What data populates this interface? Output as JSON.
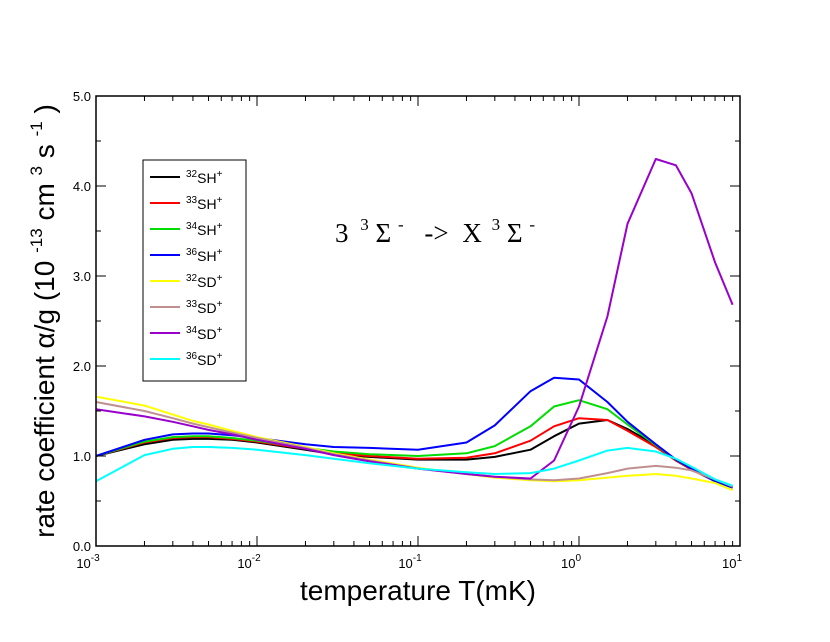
{
  "chart_data": {
    "type": "line",
    "title": "",
    "annotation": {
      "lhs_prefix": "3",
      "lhs_sup": "3",
      "lhs_sym": "Σ",
      "lhs_sym_sup": "-",
      "arrow": "->",
      "rhs_prefix": "X",
      "rhs_sup": "3",
      "rhs_sym": "Σ",
      "rhs_sym_sup": "-"
    },
    "xlabel": "temperature T(mK)",
    "ylabel": {
      "main": "rate coefficient α/g (10",
      "exp1": "-13",
      "unit1": " cm",
      "exp2": "3",
      "unit2": "s",
      "exp3": "-1",
      "close": ")"
    },
    "xscale": "log",
    "xlim": [
      0.001,
      10
    ],
    "ylim": [
      0.0,
      5.0
    ],
    "x_ticks": [
      {
        "base": "10",
        "exp": "-3",
        "value": 0.001
      },
      {
        "base": "10",
        "exp": "-2",
        "value": 0.01
      },
      {
        "base": "10",
        "exp": "-1",
        "value": 0.1
      },
      {
        "base": "10",
        "exp": "0",
        "value": 1
      },
      {
        "base": "10",
        "exp": "1",
        "value": 10
      }
    ],
    "y_ticks": [
      "0.0",
      "1.0",
      "2.0",
      "3.0",
      "4.0",
      "5.0"
    ],
    "y_tick_values": [
      0,
      1,
      2,
      3,
      4,
      5
    ],
    "legend_position": "upper-left",
    "x": [
      0.001,
      0.002,
      0.003,
      0.004,
      0.005,
      0.007,
      0.01,
      0.02,
      0.03,
      0.05,
      0.1,
      0.2,
      0.3,
      0.5,
      0.7,
      1.0,
      1.5,
      2.0,
      3.0,
      4.0,
      5.0,
      7.0,
      9.0
    ],
    "series": [
      {
        "iso": "32",
        "mol": "SH",
        "charge": "+",
        "color": "#000000",
        "values": [
          1.0,
          1.13,
          1.18,
          1.19,
          1.19,
          1.18,
          1.15,
          1.07,
          1.02,
          0.99,
          0.96,
          0.96,
          0.99,
          1.07,
          1.22,
          1.36,
          1.4,
          1.3,
          1.12,
          0.95,
          0.85,
          0.72,
          0.65
        ]
      },
      {
        "iso": "33",
        "mol": "SH",
        "charge": "+",
        "color": "#ff0000",
        "values": [
          1.0,
          1.15,
          1.2,
          1.21,
          1.21,
          1.19,
          1.16,
          1.08,
          1.03,
          1.0,
          0.97,
          0.98,
          1.03,
          1.17,
          1.33,
          1.42,
          1.4,
          1.28,
          1.1,
          0.95,
          0.85,
          0.72,
          0.65
        ]
      },
      {
        "iso": "34",
        "mol": "SH",
        "charge": "+",
        "color": "#00dd00",
        "values": [
          1.0,
          1.16,
          1.21,
          1.22,
          1.22,
          1.2,
          1.17,
          1.09,
          1.05,
          1.02,
          1.0,
          1.03,
          1.11,
          1.33,
          1.55,
          1.62,
          1.52,
          1.35,
          1.12,
          0.96,
          0.86,
          0.72,
          0.65
        ]
      },
      {
        "iso": "36",
        "mol": "SH",
        "charge": "+",
        "color": "#0000ff",
        "values": [
          1.0,
          1.18,
          1.24,
          1.25,
          1.25,
          1.23,
          1.2,
          1.13,
          1.1,
          1.09,
          1.07,
          1.15,
          1.34,
          1.72,
          1.87,
          1.85,
          1.6,
          1.38,
          1.13,
          0.96,
          0.86,
          0.72,
          0.65
        ]
      },
      {
        "iso": "32",
        "mol": "SD",
        "charge": "+",
        "color": "#ffff00",
        "values": [
          1.66,
          1.56,
          1.46,
          1.39,
          1.35,
          1.28,
          1.21,
          1.1,
          1.03,
          0.96,
          0.87,
          0.8,
          0.76,
          0.73,
          0.72,
          0.73,
          0.76,
          0.78,
          0.8,
          0.78,
          0.75,
          0.7,
          0.62
        ]
      },
      {
        "iso": "33",
        "mol": "SD",
        "charge": "+",
        "color": "#c09090",
        "values": [
          1.6,
          1.5,
          1.42,
          1.36,
          1.32,
          1.26,
          1.2,
          1.09,
          1.02,
          0.95,
          0.86,
          0.8,
          0.77,
          0.74,
          0.73,
          0.75,
          0.81,
          0.86,
          0.89,
          0.87,
          0.84,
          0.74,
          0.66
        ]
      },
      {
        "iso": "34",
        "mol": "SD",
        "charge": "+",
        "color": "#9900cc",
        "values": [
          1.52,
          1.44,
          1.38,
          1.33,
          1.29,
          1.24,
          1.18,
          1.08,
          1.01,
          0.94,
          0.86,
          0.8,
          0.77,
          0.75,
          0.95,
          1.55,
          2.55,
          3.58,
          4.3,
          4.23,
          3.92,
          3.15,
          2.68
        ]
      },
      {
        "iso": "36",
        "mol": "SD",
        "charge": "+",
        "color": "#00ffff",
        "values": [
          0.72,
          1.01,
          1.08,
          1.1,
          1.1,
          1.09,
          1.07,
          1.01,
          0.97,
          0.92,
          0.86,
          0.82,
          0.8,
          0.81,
          0.86,
          0.95,
          1.06,
          1.09,
          1.05,
          0.97,
          0.88,
          0.74,
          0.67
        ]
      }
    ]
  }
}
